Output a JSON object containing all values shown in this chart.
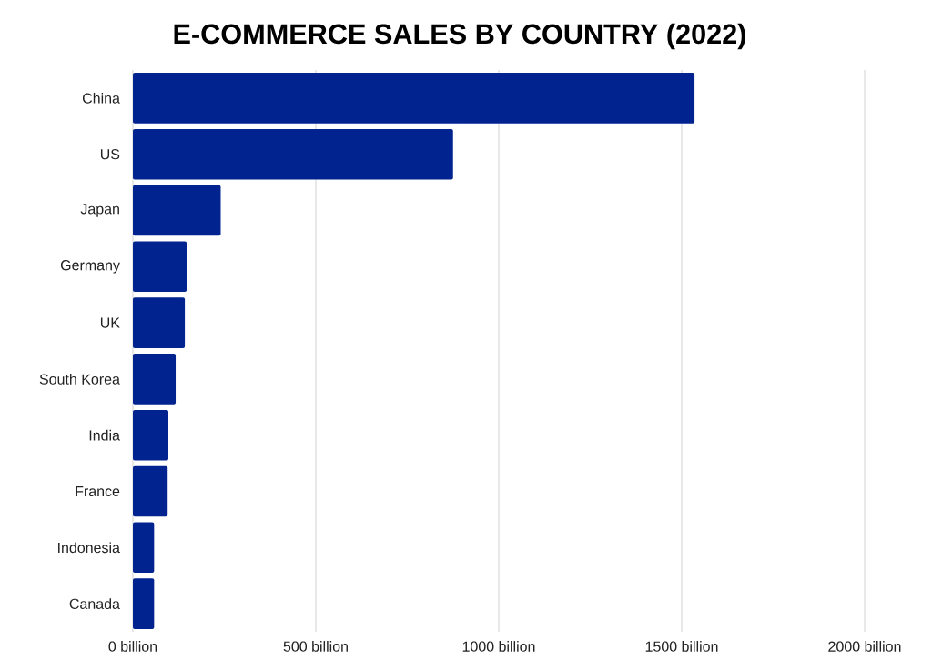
{
  "chart_data": {
    "type": "bar",
    "orientation": "horizontal",
    "title": "E-COMMERCE SALES BY COUNTRY (2022)",
    "categories": [
      "China",
      "US",
      "Japan",
      "Germany",
      "UK",
      "South Korea",
      "India",
      "France",
      "Indonesia",
      "Canada"
    ],
    "values": [
      1535,
      875,
      240,
      147,
      142,
      117,
      97,
      95,
      58,
      58
    ],
    "color": "#00238f",
    "xlim": [
      0,
      2000
    ],
    "xticks": [
      {
        "value": 0,
        "label": "0 billion"
      },
      {
        "value": 500,
        "label": "500 billion"
      },
      {
        "value": 1000,
        "label": "1000 billion"
      },
      {
        "value": 1500,
        "label": "1500 billion"
      },
      {
        "value": 2000,
        "label": "2000 billion"
      }
    ],
    "grid": "x"
  }
}
